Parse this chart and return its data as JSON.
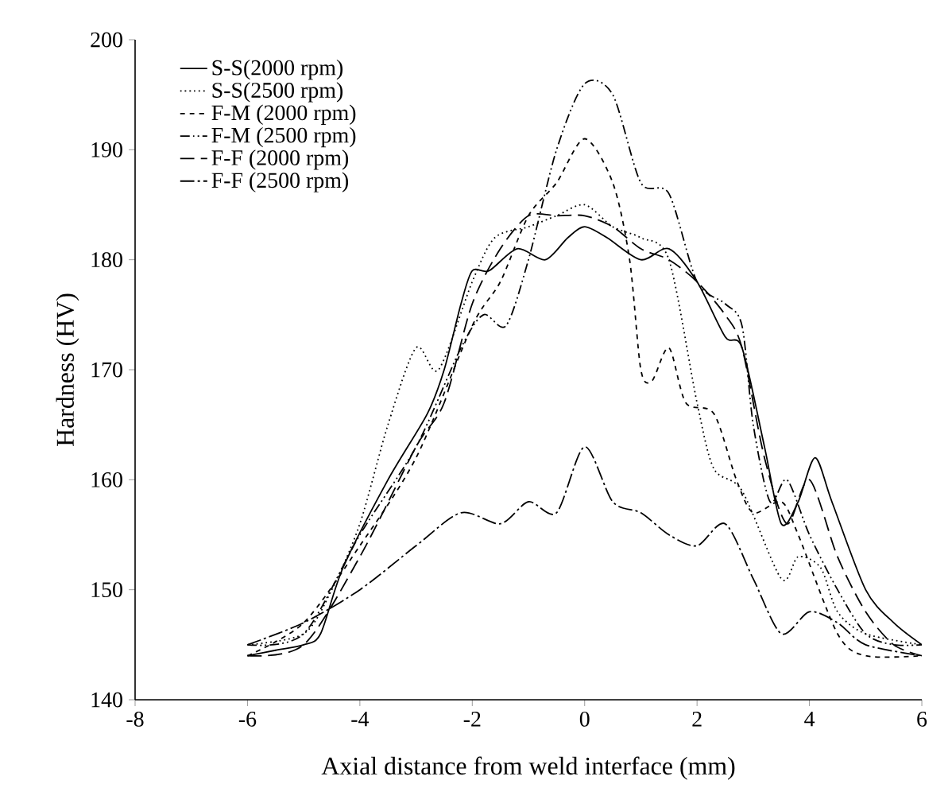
{
  "chart_data": {
    "type": "line",
    "xlabel": "Axial distance from weld interface (mm)",
    "ylabel": "Hardness (HV)",
    "xlim": [
      -8,
      6
    ],
    "ylim": [
      140,
      200
    ],
    "xticks": [
      -8,
      -6,
      -4,
      -2,
      0,
      2,
      4,
      6
    ],
    "yticks": [
      140,
      150,
      160,
      170,
      180,
      190,
      200
    ],
    "grid": false,
    "legend": "top left",
    "series": [
      {
        "name": "S-S(2000 rpm)",
        "color": "#000000",
        "line_style": "solid",
        "x": [
          -6,
          -5.5,
          -5,
          -4.7,
          -4.3,
          -3.5,
          -2.8,
          -2.5,
          -2.2,
          -2,
          -1.7,
          -1.2,
          -0.7,
          -0.3,
          0,
          0.4,
          1,
          1.5,
          2,
          2.5,
          2.8,
          3.2,
          3.5,
          3.8,
          4.1,
          4.4,
          5,
          5.5,
          6
        ],
        "values": [
          144,
          144.5,
          145,
          146,
          152,
          160,
          166,
          170,
          176,
          179,
          179,
          181,
          180,
          182,
          183,
          182,
          180,
          181,
          178,
          173,
          172,
          163,
          156,
          158,
          162,
          158,
          150,
          147,
          145
        ]
      },
      {
        "name": "S-S(2500 rpm)",
        "color": "#000000",
        "line_style": "dotted",
        "x": [
          -6,
          -5,
          -4.5,
          -4,
          -3.5,
          -3,
          -2.6,
          -2,
          -1.6,
          -1,
          -0.5,
          0,
          0.5,
          1,
          1.5,
          2,
          2.3,
          2.8,
          3.5,
          3.8,
          4.2,
          4.5,
          5,
          6
        ],
        "values": [
          145,
          146,
          150,
          156,
          165,
          172,
          170,
          178,
          182,
          183,
          184,
          185,
          183,
          182,
          180,
          167,
          161,
          159,
          151,
          153,
          152,
          148,
          146,
          145
        ]
      },
      {
        "name": "F-M (2000 rpm)",
        "color": "#000000",
        "line_style": "dashed",
        "x": [
          -6,
          -5,
          -4,
          -3,
          -2,
          -1.5,
          -1,
          -0.5,
          0,
          0.5,
          0.8,
          1,
          1.2,
          1.5,
          1.8,
          2.3,
          2.7,
          3,
          3.5,
          3.8,
          4.5,
          5,
          6
        ],
        "values": [
          144,
          147,
          154,
          162,
          174,
          178,
          184,
          187,
          191,
          187,
          180,
          170,
          169,
          172,
          167,
          166,
          160,
          157,
          158,
          155,
          146,
          144,
          144
        ]
      },
      {
        "name": "F-M (2500 rpm)",
        "color": "#000000",
        "line_style": "dashdotdotted",
        "x": [
          -6,
          -5,
          -4,
          -3,
          -2.2,
          -1.8,
          -1.4,
          -1,
          -0.5,
          0,
          0.5,
          1,
          1.5,
          2,
          2.5,
          2.8,
          3,
          3.3,
          3.6,
          4,
          4.5,
          5,
          5.5,
          6
        ],
        "values": [
          145,
          146,
          155,
          163,
          172,
          175,
          174,
          180,
          190,
          196,
          195,
          187,
          186,
          178,
          176,
          174,
          165,
          158,
          160,
          155,
          150,
          146,
          145,
          145
        ]
      },
      {
        "name": "F-F (2000 rpm)",
        "color": "#000000",
        "line_style": "longdashed",
        "x": [
          -6,
          -5,
          -4,
          -3,
          -2.5,
          -2,
          -1.5,
          -1,
          -0.5,
          0,
          0.5,
          1,
          1.5,
          2,
          2.5,
          2.8,
          3.2,
          3.6,
          4,
          4.5,
          5,
          5.5,
          6
        ],
        "values": [
          144,
          145,
          153,
          163,
          167,
          176,
          181,
          184,
          184,
          184,
          183,
          181,
          180,
          178,
          175,
          172,
          162,
          156,
          160,
          153,
          148,
          145,
          144
        ]
      },
      {
        "name": "F-F (2500 rpm)",
        "color": "#000000",
        "line_style": "dashdotted",
        "x": [
          -6,
          -5,
          -4,
          -3,
          -2.2,
          -1.5,
          -1,
          -0.5,
          0,
          0.5,
          1,
          1.5,
          2,
          2.5,
          3,
          3.5,
          4,
          4.5,
          5,
          6
        ],
        "values": [
          145,
          147,
          150,
          154,
          157,
          156,
          158,
          157,
          163,
          158,
          157,
          155,
          154,
          156,
          151,
          146,
          148,
          147,
          145,
          144
        ]
      }
    ]
  }
}
